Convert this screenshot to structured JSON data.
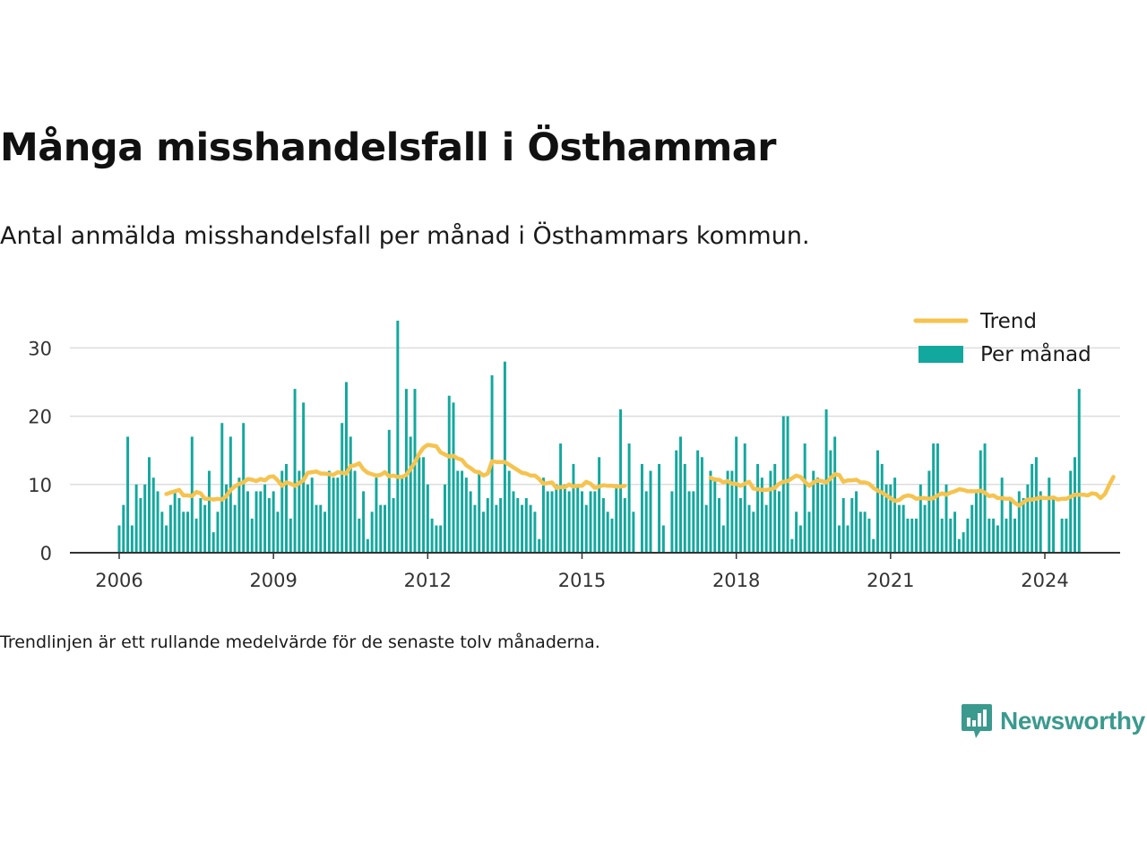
{
  "chart_data": {
    "type": "bar",
    "title": "Många misshandelsfall i Östhammar",
    "subtitle": "Antal anmälda misshandelsfall per månad i Östhammars kommun.",
    "note": "Trendlinjen är ett rullande medelvärde för de senaste tolv månaderna.",
    "xlabel": "",
    "ylabel": "",
    "x_start": "2006-01",
    "x_end": "2024-07",
    "xlim": [
      "2005-01",
      "2025-01"
    ],
    "ylim": [
      0,
      34
    ],
    "y_ticks": [
      0,
      10,
      20,
      30
    ],
    "x_ticks": [
      "2006",
      "2009",
      "2012",
      "2015",
      "2018",
      "2021",
      "2024"
    ],
    "grid": "horizontal",
    "legend_position": "top-right",
    "series": [
      {
        "name": "Per månad",
        "type": "bar",
        "color": "#13a89e",
        "values": [
          4,
          7,
          17,
          4,
          10,
          8,
          10,
          14,
          11,
          9,
          6,
          4,
          7,
          9,
          8,
          6,
          6,
          17,
          5,
          8,
          7,
          12,
          3,
          6,
          19,
          10,
          17,
          7,
          11,
          19,
          9,
          5,
          9,
          9,
          10,
          8,
          9,
          6,
          12,
          13,
          5,
          24,
          12,
          22,
          10,
          11,
          7,
          7,
          6,
          12,
          11,
          11,
          19,
          25,
          17,
          12,
          5,
          9,
          2,
          6,
          11,
          7,
          7,
          18,
          8,
          34,
          11,
          24,
          17,
          24,
          14,
          14,
          10,
          5,
          4,
          4,
          10,
          23,
          22,
          12,
          12,
          11,
          9,
          7,
          12,
          6,
          8,
          26,
          7,
          8,
          28,
          12,
          9,
          8,
          7,
          8,
          7,
          6,
          2,
          11,
          9,
          9,
          10,
          16,
          10,
          9,
          13,
          10,
          9,
          7,
          9,
          9,
          14,
          8,
          6,
          5,
          10,
          21,
          8,
          16,
          6,
          0,
          13,
          9,
          12,
          0,
          13,
          4,
          0,
          9,
          15,
          17,
          13,
          9,
          9,
          15,
          14,
          7,
          12,
          11,
          8,
          4,
          12,
          12,
          17,
          8,
          16,
          7,
          6,
          13,
          11,
          7,
          12,
          13,
          9,
          20,
          20,
          2,
          6,
          4,
          16,
          6,
          12,
          11,
          10,
          21,
          15,
          17,
          4,
          8,
          4,
          8,
          9,
          6,
          6,
          5,
          2,
          15,
          13,
          10,
          10,
          11,
          7,
          7,
          5,
          5,
          5,
          10,
          7,
          12,
          16,
          16,
          5,
          10,
          5,
          6,
          2,
          3,
          5,
          7,
          9,
          15,
          16,
          5,
          5,
          4,
          11,
          5,
          8,
          5,
          9,
          8,
          10,
          13,
          14,
          9,
          0,
          11,
          8,
          0,
          5,
          5,
          12,
          14,
          24
        ]
      },
      {
        "name": "Trend",
        "type": "line",
        "color": "#f6c34f",
        "values": [
          null,
          null,
          null,
          null,
          null,
          null,
          null,
          null,
          null,
          null,
          null,
          8.6,
          8.8,
          9.0,
          9.2,
          8.4,
          8.4,
          8.3,
          8.9,
          8.7,
          7.9,
          7.9,
          7.8,
          7.9,
          7.8,
          8.3,
          9.2,
          9.7,
          10.1,
          10.3,
          10.8,
          10.7,
          10.5,
          10.8,
          10.6,
          11.1,
          11.2,
          10.6,
          9.8,
          10.3,
          10.1,
          9.8,
          10.2,
          10.6,
          11.7,
          11.8,
          11.9,
          11.6,
          11.6,
          11.5,
          11.4,
          11.8,
          11.7,
          11.6,
          12.7,
          12.8,
          13.1,
          12.2,
          11.7,
          11.5,
          11.3,
          11.4,
          11.8,
          11.2,
          11.3,
          11.1,
          11.1,
          11.4,
          12.3,
          13.2,
          14.5,
          15.4,
          15.8,
          15.7,
          15.6,
          14.7,
          14.4,
          14.1,
          14.2,
          13.8,
          13.6,
          12.8,
          12.4,
          11.9,
          11.8,
          11.3,
          11.6,
          13.4,
          13.3,
          13.3,
          13.3,
          12.9,
          12.5,
          12.1,
          11.7,
          11.6,
          11.3,
          11.3,
          10.8,
          10.1,
          10.2,
          10.3,
          9.5,
          9.6,
          9.6,
          10.0,
          9.7,
          9.8,
          9.8,
          10.4,
          10.1,
          9.5,
          9.7,
          9.9,
          9.8,
          9.8,
          9.7,
          9.7,
          9.8,
          null,
          null,
          null,
          null,
          null,
          null,
          null,
          null,
          null,
          null,
          null,
          null,
          null,
          null,
          null,
          null,
          null,
          null,
          null,
          11.0,
          10.7,
          10.7,
          10.3,
          10.5,
          10.1,
          10.1,
          9.8,
          10.1,
          10.4,
          9.4,
          9.3,
          9.2,
          9.2,
          9.3,
          9.5,
          10.1,
          10.4,
          10.5,
          10.9,
          11.3,
          11.1,
          10.4,
          9.8,
          10.3,
          10.6,
          10.5,
          10.3,
          10.9,
          11.5,
          11.4,
          10.4,
          10.6,
          10.6,
          10.7,
          10.3,
          10.3,
          10.1,
          9.5,
          9.1,
          8.8,
          8.4,
          8.0,
          7.6,
          7.7,
          8.2,
          8.4,
          8.3,
          7.9,
          8.0,
          8.0,
          7.9,
          8.0,
          8.4,
          8.7,
          8.5,
          8.8,
          9.0,
          9.3,
          9.2,
          9.0,
          9.0,
          9.0,
          9.1,
          8.8,
          8.3,
          8.4,
          8.0,
          8.0,
          7.9,
          7.9,
          7.3,
          6.9,
          7.4,
          7.8,
          7.8,
          7.9,
          8.1,
          8.0,
          8.0,
          8.1,
          7.8,
          7.9,
          7.9,
          8.2,
          8.5,
          8.5,
          8.5,
          8.4,
          8.7,
          8.6,
          8.0,
          8.6,
          9.9,
          11.1
        ]
      }
    ]
  },
  "brand": {
    "name": "Newsworthy",
    "icon": "newsworthy-logo-icon",
    "color": "#3a9a8e"
  }
}
